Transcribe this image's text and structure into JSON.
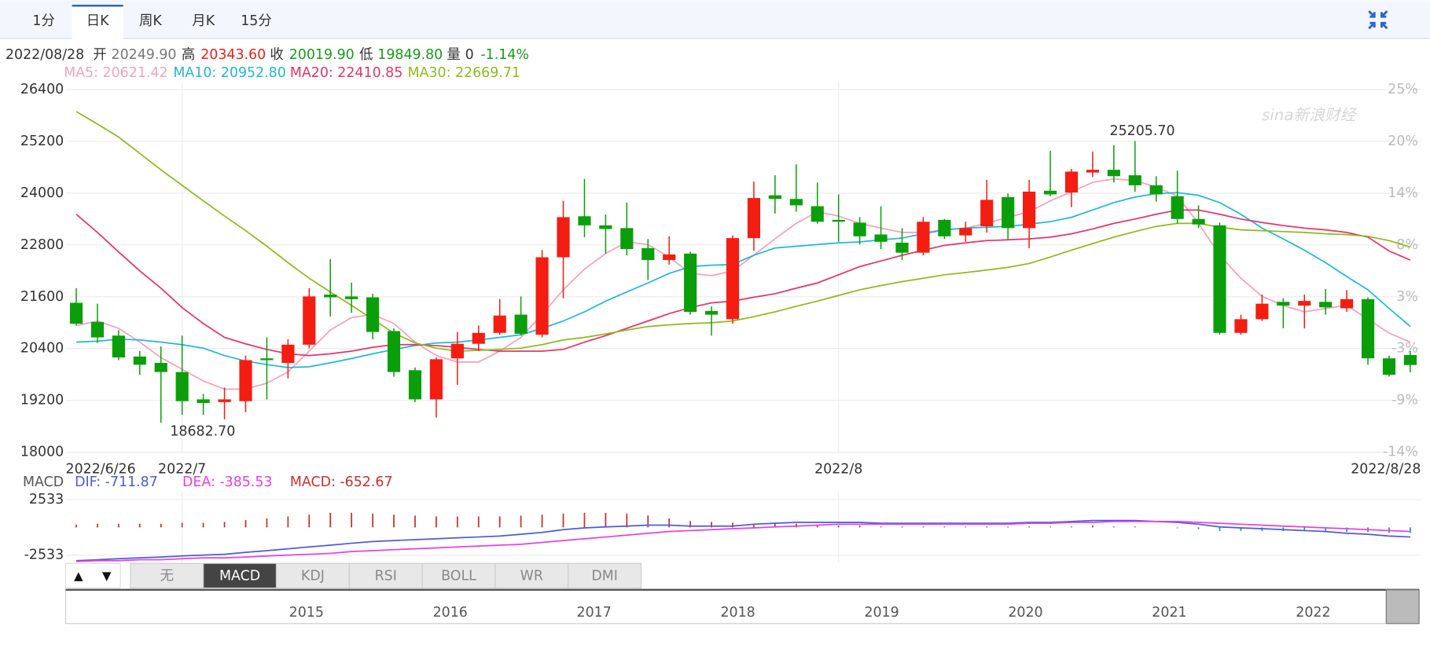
{
  "tabs": [
    "1分",
    "日K",
    "周K",
    "月K",
    "15分"
  ],
  "active_tab": 1,
  "info": {
    "date": "2022/08/28",
    "fields": [
      {
        "label": "开",
        "value": "20249.90"
      },
      {
        "label": "高",
        "value": "20343.60"
      },
      {
        "label": "收",
        "value": "20019.90"
      },
      {
        "label": "低",
        "value": "19849.80"
      },
      {
        "label": "量",
        "value": "0"
      }
    ],
    "change": "-1.14%"
  },
  "chart_data": [
    {
      "type": "candlestick",
      "watermark": "sina新浪财经",
      "categories": [
        "2022/6/26",
        null,
        null,
        null,
        null,
        "2022/7",
        null,
        null,
        null,
        null,
        null,
        null,
        null,
        null,
        null,
        null,
        null,
        null,
        null,
        null,
        null,
        null,
        null,
        null,
        null,
        null,
        null,
        null,
        null,
        null,
        null,
        null,
        null,
        null,
        null,
        null,
        "2022/8",
        null,
        null,
        null,
        null,
        null,
        null,
        null,
        null,
        null,
        null,
        null,
        null,
        null,
        null,
        null,
        null,
        null,
        null,
        null,
        null,
        null,
        null,
        null,
        null,
        null,
        null,
        "2022/8/28"
      ],
      "open": [
        21460,
        21017,
        20701,
        20216,
        20068,
        19857,
        19224,
        19161,
        19182,
        20174,
        20068,
        20490,
        21650,
        21608,
        21587,
        20806,
        19899,
        19224,
        20174,
        20511,
        20764,
        21186,
        20722,
        22515,
        23465,
        23254,
        23191,
        22726,
        22452,
        22600,
        21271,
        21081,
        22959,
        23950,
        23866,
        23697,
        23381,
        23317,
        23043,
        22853,
        22621,
        23381,
        23022,
        23233,
        23908,
        23191,
        24056,
        24014,
        24478,
        24541,
        24414,
        24182,
        23929,
        23402,
        23254,
        20764,
        21081,
        21482,
        21397,
        21482,
        21334,
        21545,
        20174,
        20249.9
      ],
      "high": [
        21799,
        21440,
        20828,
        20342,
        20448,
        20701,
        19350,
        19498,
        20237,
        20659,
        20616,
        21799,
        22473,
        21925,
        21671,
        20870,
        19962,
        20195,
        20785,
        20933,
        21545,
        21608,
        22684,
        23824,
        24330,
        23507,
        23781,
        22937,
        23001,
        22642,
        21376,
        23022,
        24267,
        24414,
        24668,
        24246,
        23971,
        23444,
        23697,
        23191,
        23444,
        23402,
        23338,
        24309,
        23992,
        24309,
        24984,
        24562,
        24963,
        25111,
        25205.7,
        24393,
        24520,
        23718,
        23317,
        21186,
        21650,
        21566,
        21650,
        21777,
        21756,
        21587,
        20237,
        20343.6
      ],
      "low": [
        20933,
        20533,
        20132,
        19794,
        18682.7,
        18865,
        18865,
        18760,
        18928,
        19224,
        19709,
        20405,
        21144,
        21229,
        20616,
        19751,
        19161,
        18802,
        19561,
        20342,
        20722,
        20701,
        20659,
        21566,
        22980,
        22600,
        22558,
        21988,
        22347,
        21186,
        20701,
        20975,
        22663,
        23528,
        23570,
        23296,
        22874,
        22811,
        22705,
        22452,
        22558,
        22937,
        22874,
        23085,
        22916,
        22726,
        23929,
        23676,
        24372,
        24246,
        24035,
        23802,
        23296,
        23191,
        20722,
        20722,
        21039,
        20870,
        20870,
        21186,
        21249,
        20026,
        19751,
        19849.8
      ],
      "close": [
        20975,
        20659,
        20195,
        20026,
        19857,
        19182,
        19139,
        19224,
        20132,
        20132,
        20490,
        21608,
        21587,
        21545,
        20785,
        19857,
        19224,
        20153,
        20511,
        20764,
        21165,
        20743,
        22515,
        23444,
        23254,
        23170,
        22705,
        22452,
        22579,
        21249,
        21186,
        22959,
        23887,
        23866,
        23718,
        23338,
        23338,
        23001,
        22874,
        22621,
        23338,
        23001,
        23191,
        23845,
        23191,
        24035,
        23971,
        24499,
        24541,
        24393,
        24182,
        23971,
        23402,
        23275,
        20764,
        21081,
        21440,
        21397,
        21503,
        21355,
        21545,
        20174,
        19794,
        20019.9
      ],
      "up_color": "#f41d12",
      "down_color": "#0a9f0a",
      "ylim": [
        18000,
        26400
      ],
      "yticks": [
        18000,
        19200,
        20400,
        21600,
        22800,
        24000,
        25200,
        26400
      ],
      "y2lim": [
        -14.47,
        25.45
      ],
      "y2ticks": [
        {
          "value": -14.47,
          "label": "-14%"
        },
        {
          "value": -8.77,
          "label": "-9%"
        },
        {
          "value": -3.06,
          "label": "-3%"
        },
        {
          "value": 2.64,
          "label": "3%"
        },
        {
          "value": 8.34,
          "label": "8%"
        },
        {
          "value": 14.04,
          "label": "14%"
        },
        {
          "value": 19.74,
          "label": "20%"
        },
        {
          "value": 25.45,
          "label": "25%"
        }
      ],
      "grid": true,
      "annotations": [
        {
          "label": "25205.70",
          "value": 25205.7
        },
        {
          "label": "18682.70",
          "value": 18682.7
        }
      ],
      "overlays": [
        {
          "name": "MA5: 20621.42",
          "color": "#f4a1bf",
          "values": [
            20930,
            21040,
            20870,
            20550,
            20190,
            19920,
            19650,
            19460,
            19460,
            19600,
            19860,
            20340,
            20830,
            21120,
            21190,
            20980,
            20550,
            20240,
            20090,
            20090,
            20340,
            20660,
            21190,
            21760,
            22240,
            22600,
            22870,
            22810,
            22520,
            22140,
            22090,
            22200,
            22560,
            22940,
            23300,
            23570,
            23470,
            23300,
            23190,
            23090,
            23090,
            23150,
            23190,
            23300,
            23440,
            23570,
            23820,
            24030,
            24250,
            24330,
            24290,
            24140,
            23930,
            23300,
            22560,
            22030,
            21610,
            21400,
            21250,
            21330,
            21400,
            21080,
            20760,
            20550
          ]
        },
        {
          "name": "MA10: 20952.80",
          "color": "#22b8d6",
          "values": [
            20550,
            20570,
            20620,
            20600,
            20550,
            20490,
            20410,
            20240,
            20110,
            20030,
            19960,
            19980,
            20070,
            20170,
            20280,
            20380,
            20470,
            20530,
            20550,
            20600,
            20660,
            20720,
            20870,
            21040,
            21250,
            21500,
            21710,
            21920,
            22140,
            22300,
            22330,
            22350,
            22560,
            22730,
            22770,
            22810,
            22850,
            22870,
            22920,
            22960,
            23060,
            23150,
            23190,
            23210,
            23230,
            23280,
            23340,
            23440,
            23610,
            23780,
            23910,
            23990,
            24010,
            23950,
            23780,
            23510,
            23190,
            22940,
            22680,
            22390,
            22070,
            21760,
            21330,
            20910
          ]
        },
        {
          "name": "MA20: 22410.85",
          "color": "#e8336b",
          "values": [
            23510,
            23090,
            22640,
            22200,
            21800,
            21350,
            20980,
            20660,
            20510,
            20380,
            20280,
            20240,
            20280,
            20340,
            20430,
            20490,
            20490,
            20470,
            20430,
            20380,
            20340,
            20340,
            20340,
            20380,
            20550,
            20700,
            20870,
            21040,
            21210,
            21350,
            21460,
            21500,
            21590,
            21670,
            21800,
            21920,
            22110,
            22300,
            22430,
            22560,
            22680,
            22790,
            22850,
            22900,
            22920,
            22940,
            22980,
            23060,
            23170,
            23300,
            23400,
            23510,
            23610,
            23610,
            23510,
            23400,
            23320,
            23250,
            23190,
            23150,
            23090,
            22980,
            22660,
            22450
          ]
        },
        {
          "name": "MA30: 22669.71",
          "color": "#8dbb1b",
          "values": [
            25890,
            25600,
            25300,
            24920,
            24540,
            24180,
            23820,
            23470,
            23130,
            22770,
            22390,
            22030,
            21710,
            21400,
            21080,
            20760,
            20530,
            20410,
            20340,
            20360,
            20380,
            20410,
            20490,
            20600,
            20660,
            20740,
            20830,
            20910,
            20950,
            20980,
            21000,
            21040,
            21140,
            21250,
            21380,
            21500,
            21630,
            21760,
            21860,
            21950,
            22030,
            22110,
            22160,
            22220,
            22280,
            22370,
            22520,
            22680,
            22830,
            22980,
            23110,
            23230,
            23300,
            23300,
            23210,
            23150,
            23130,
            23110,
            23090,
            23060,
            23040,
            23000,
            22900,
            22750
          ]
        }
      ]
    },
    {
      "type": "macd",
      "title": "MACD",
      "ylim": [
        -3200,
        3200
      ],
      "yticks": [
        -2533,
        2533
      ],
      "series": [
        {
          "name": "DIF: -711.87",
          "color": "#4b5bdc",
          "values": [
            -3030,
            -2950,
            -2860,
            -2780,
            -2700,
            -2610,
            -2530,
            -2450,
            -2280,
            -2120,
            -1950,
            -1780,
            -1620,
            -1450,
            -1290,
            -1200,
            -1120,
            -1040,
            -950,
            -870,
            -790,
            -620,
            -460,
            -210,
            -40,
            40,
            120,
            210,
            210,
            120,
            120,
            120,
            290,
            370,
            460,
            460,
            460,
            460,
            370,
            370,
            370,
            370,
            370,
            370,
            370,
            460,
            460,
            540,
            620,
            620,
            620,
            540,
            460,
            290,
            40,
            -40,
            -120,
            -210,
            -290,
            -370,
            -540,
            -620,
            -790,
            -870
          ]
        },
        {
          "name": "DEA: -385.53",
          "color": "#e83ee8",
          "values": [
            -3110,
            -3030,
            -3030,
            -2950,
            -2950,
            -2860,
            -2780,
            -2780,
            -2700,
            -2610,
            -2530,
            -2450,
            -2370,
            -2200,
            -2120,
            -2030,
            -1950,
            -1870,
            -1780,
            -1700,
            -1620,
            -1540,
            -1370,
            -1200,
            -1040,
            -870,
            -710,
            -540,
            -370,
            -290,
            -210,
            -120,
            -40,
            40,
            120,
            210,
            290,
            290,
            290,
            290,
            290,
            290,
            290,
            290,
            290,
            370,
            370,
            460,
            460,
            540,
            540,
            540,
            540,
            460,
            370,
            290,
            210,
            120,
            40,
            -40,
            -120,
            -210,
            -290,
            -370
          ]
        }
      ],
      "histogram": {
        "name": "MACD: -652.67",
        "color": "#c8302c",
        "down_color": "#14a37a",
        "values": [
          250,
          330,
          330,
          330,
          330,
          420,
          420,
          500,
          670,
          830,
          1000,
          1160,
          1330,
          1330,
          1250,
          1160,
          1080,
          1000,
          1000,
          1000,
          1000,
          1080,
          1160,
          1250,
          1330,
          1330,
          1250,
          1080,
          830,
          580,
          500,
          420,
          330,
          330,
          330,
          250,
          170,
          170,
          80,
          80,
          80,
          80,
          80,
          80,
          80,
          80,
          80,
          80,
          170,
          80,
          80,
          0,
          -80,
          -170,
          -330,
          -330,
          -330,
          -330,
          -330,
          -330,
          -420,
          -420,
          -500,
          -500
        ]
      }
    }
  ],
  "nav_buttons": [
    "▲",
    "▼"
  ],
  "indicator_tabs": [
    "无",
    "MACD",
    "KDJ",
    "RSI",
    "BOLL",
    "WR",
    "DMI"
  ],
  "active_indicator": 1,
  "navigator_labels": [
    "2015",
    "2016",
    "2017",
    "2018",
    "2019",
    "2020",
    "2021",
    "2022"
  ]
}
